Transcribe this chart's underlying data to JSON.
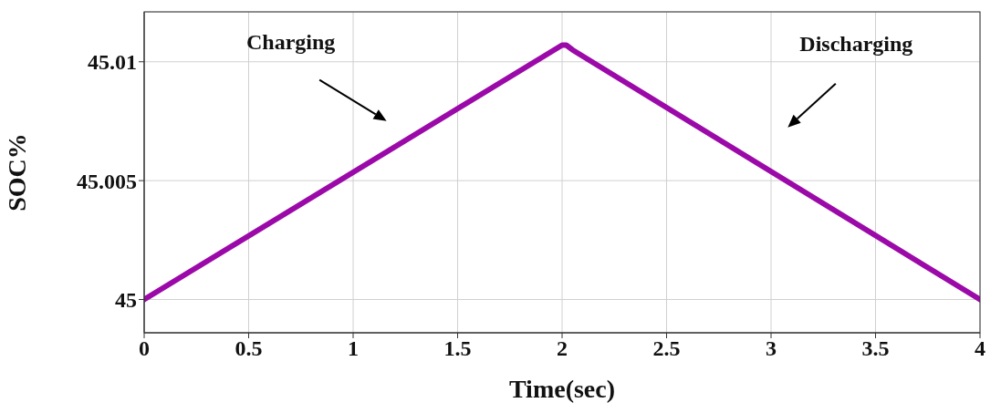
{
  "chart_data": {
    "type": "line",
    "xlabel": "Time(sec)",
    "ylabel": "SOC%",
    "x": [
      0,
      2,
      2.02,
      2.05,
      4
    ],
    "series": [
      {
        "color": "#9b0aa8",
        "values": [
          45.0,
          45.0107,
          45.0107,
          45.0105,
          45.0
        ]
      }
    ],
    "xlim": [
      0,
      4
    ],
    "xticks": [
      0,
      0.5,
      1,
      1.5,
      2,
      2.5,
      3,
      3.5,
      4
    ],
    "ylim": [
      44.9986,
      45.0121
    ],
    "yticks": [
      45,
      45.005,
      45.01
    ],
    "grid": true,
    "marker": "none",
    "line_style": "solid",
    "annotations": [
      "Charging",
      "Discharging"
    ]
  }
}
